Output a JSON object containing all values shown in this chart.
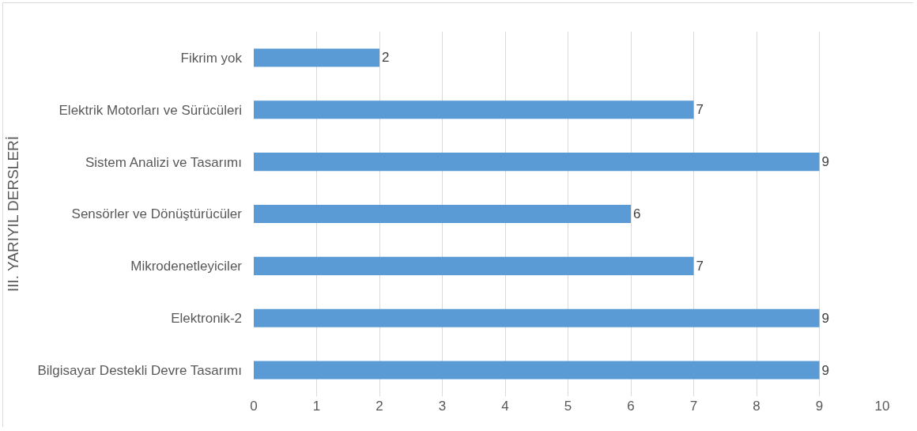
{
  "chart_data": {
    "type": "bar",
    "orientation": "horizontal",
    "ylabel": "III. YARIYIL DERSLERİ",
    "categories": [
      "Fikrim yok",
      "Elektrik Motorları ve Sürücüleri",
      "Sistem Analizi ve Tasarımı",
      "Sensörler ve Dönüştürücüler",
      "Mikrodenetleyiciler",
      "Elektronik-2",
      "Bilgisayar Destekli Devre Tasarımı"
    ],
    "values": [
      2,
      7,
      9,
      6,
      7,
      9,
      9
    ],
    "color": "#5b9bd5",
    "xlim": [
      0,
      10
    ],
    "xticks": [
      0,
      1,
      2,
      3,
      4,
      5,
      6,
      7,
      8,
      9,
      10
    ],
    "grid": "x",
    "data_labels": true
  }
}
